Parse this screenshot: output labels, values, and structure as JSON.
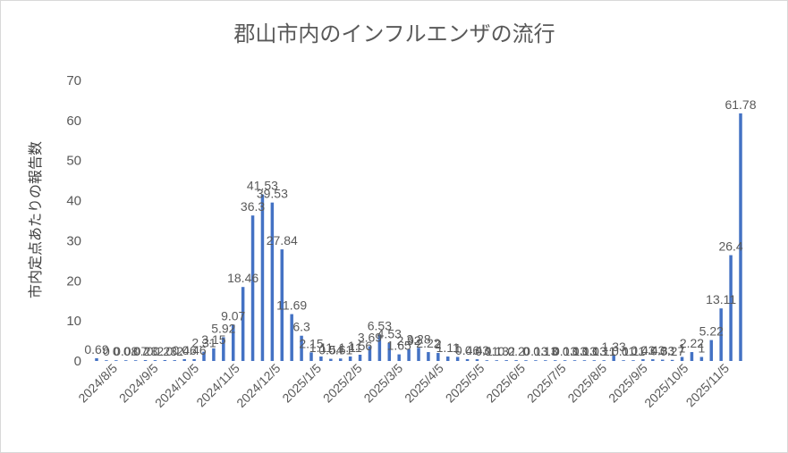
{
  "chart_data": {
    "type": "bar",
    "title": "郡山市内のインフルエンザの流行",
    "ylabel": "市内定点あたりの報告数",
    "xlabel": "",
    "ylim": [
      0,
      70
    ],
    "yticks": [
      0,
      10,
      20,
      30,
      40,
      50,
      60,
      70
    ],
    "grid": false,
    "legend": "none",
    "color": "#4472c4",
    "x_tick_labels": [
      "2024/8/5",
      "2024/9/5",
      "2024/10/5",
      "2024/11/5",
      "2024/12/5",
      "2025/1/5",
      "2025/2/5",
      "2025/3/5",
      "2025/4/5",
      "2025/5/5",
      "2025/6/5",
      "2025/7/5",
      "2025/8/5",
      "2025/9/5",
      "2025/10/5",
      "2025/11/5"
    ],
    "values": [
      0.69,
      0.0,
      0.0,
      0.08,
      0.07,
      0.23,
      0.2,
      0.23,
      0.2,
      0.46,
      0.46,
      2.31,
      3.15,
      5.92,
      9.07,
      18.46,
      36.3,
      41.53,
      39.53,
      27.84,
      11.69,
      6.3,
      2.15,
      1.11,
      0.54,
      0.61,
      1.11,
      1.56,
      3.69,
      6.53,
      4.53,
      1.65,
      2.92,
      3.28,
      2.22,
      2.0,
      1.11,
      1.0,
      0.46,
      0.43,
      0.11,
      0.13,
      0.2,
      0.2,
      0.0,
      0.13,
      0.13,
      0.0,
      0.13,
      0.13,
      0.13,
      0.13,
      0.11,
      1.33,
      0.11,
      0.11,
      0.43,
      0.43,
      0.33,
      0.27,
      1.0,
      2.22,
      1.0,
      5.22,
      13.11,
      26.4,
      61.78
    ],
    "labels": [
      "0.69",
      "0",
      "0",
      "0.08",
      "0.07",
      "0.23",
      "0.2",
      "0.23",
      "0.2",
      "0.46",
      "0.46",
      "2.31",
      "3.15",
      "5.92",
      "9.07",
      "18.46",
      "36.3",
      "41.53",
      "39.53",
      "27.84",
      "11.69",
      "6.3",
      "2.15",
      "1.11",
      "0.54",
      "0.61",
      "1.11",
      "1.56",
      "3.69",
      "6.53",
      "4.53",
      "1.65",
      "2.92",
      "3.28",
      "2.22",
      "2",
      "1.11",
      "1",
      "0.46",
      "0.43",
      "0.11",
      "0.13",
      "0.2",
      "0.2",
      "0",
      "0.13",
      "0.13",
      "0",
      "0.13",
      "0.13",
      "0.13",
      "0.13",
      "0.11",
      "1.33",
      "0.11",
      "0.11",
      "0.43",
      "0.43",
      "0.33",
      "0.27",
      "1",
      "2.22",
      "1",
      "5.22",
      "13.11",
      "26.4",
      "61.78"
    ]
  }
}
